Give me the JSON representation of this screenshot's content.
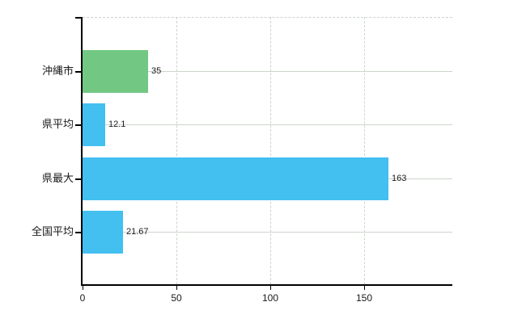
{
  "chart_data": {
    "type": "bar",
    "orientation": "horizontal",
    "title": "",
    "xlabel": "",
    "ylabel": "",
    "categories": [
      "沖縄市",
      "県平均",
      "県最大",
      "全国平均"
    ],
    "values": [
      35,
      12.1,
      163,
      21.67
    ],
    "value_labels": [
      "35",
      "12.1",
      "163",
      "21.67"
    ],
    "bar_colors": [
      "#72c883",
      "#43bff0",
      "#43bff0",
      "#43bff0"
    ],
    "xlim": [
      0,
      197
    ],
    "x_ticks": [
      0,
      50,
      100,
      150
    ],
    "x_tick_labels": [
      "0",
      "50",
      "100",
      "150"
    ],
    "grid": "on",
    "legend": "none",
    "colors": {
      "grid": "#ccd5cb",
      "axis": "#000000",
      "text": "#1a1a1a",
      "bar_default": "#43bff0",
      "bar_highlight": "#72c883",
      "background": "#ffffff"
    }
  }
}
